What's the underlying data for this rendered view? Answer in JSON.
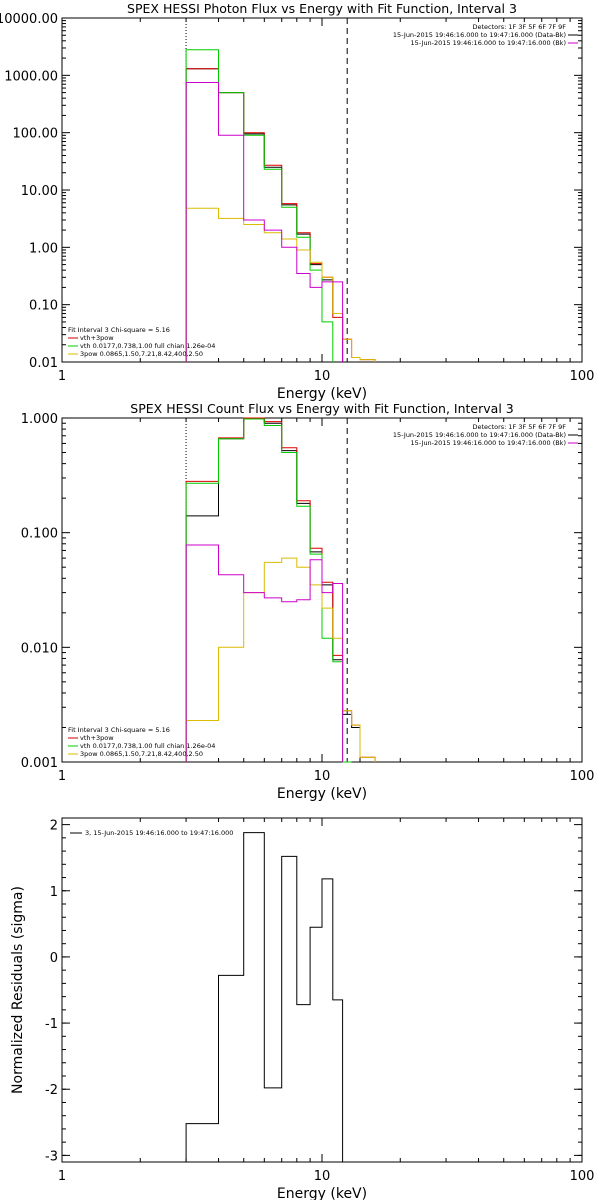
{
  "chart_data": [
    {
      "type": "line",
      "title": "SPEX HESSI Photon Flux vs Energy with Fit Function, Interval 3",
      "xlabel": "Energy (keV)",
      "ylabel": "",
      "xscale": "log",
      "yscale": "log",
      "xlim": [
        1,
        100
      ],
      "ylim": [
        0.01,
        10000
      ],
      "x_ticks": [
        "1",
        "10",
        "100"
      ],
      "y_ticks": [
        "0.01",
        "0.10",
        "1.00",
        "10.00",
        "100.00",
        "1000.00",
        "10000.00"
      ],
      "y_tick_values": [
        0.01,
        0.1,
        1,
        10,
        100,
        1000,
        10000
      ],
      "legend_top_right": [
        "Detectors: 1F 3F 5F 6F 7F 9F",
        "15-Jun-2015 19:46:16.000 to 19:47:16.000 (Data-Bk)",
        "15-Jun-2015 19:46:16.000 to 19:47:16.000 (Bk)"
      ],
      "legend_bottom_left": [
        {
          "text": "Fit Interval 3   Chi-square = 5.16",
          "color": "#000000"
        },
        {
          "text": "vth+3pow",
          "color": "#cc0000"
        },
        {
          "text": "vth 0.0177,0.738,1.00  full chian 1.26e-04",
          "color": "#00cc00"
        },
        {
          "text": "3pow 0.0865,1.50,7.21,8.42,400,2.50",
          "color": "#ddbb00"
        }
      ],
      "vlines": [
        {
          "x": 3.0,
          "style": "dotted",
          "color": "#000000"
        },
        {
          "x": 12.5,
          "style": "dashed",
          "color": "#000000"
        }
      ],
      "bin_edges": [
        3.0,
        4.0,
        5.0,
        6.0,
        7.0,
        8.0,
        9.0,
        10.0,
        11.0,
        12.0,
        13.0,
        14.0,
        16.0
      ],
      "series": [
        {
          "name": "",
          "color": "#000000",
          "values": [
            1300,
            500,
            95,
            25,
            5.5,
            1.7,
            0.5,
            0.27,
            0.07,
            null,
            null,
            null
          ]
        },
        {
          "name": "",
          "color": "#dd0000",
          "values": [
            1300,
            500,
            100,
            27,
            5.8,
            1.8,
            0.52,
            0.3,
            0.06,
            0.025,
            0.012,
            0.011
          ]
        },
        {
          "name": "",
          "color": "#00cc00",
          "values": [
            2800,
            500,
            90,
            23,
            5.0,
            1.5,
            0.4,
            0.05,
            null,
            null,
            null,
            null
          ]
        },
        {
          "name": "",
          "color": "#ddbb00",
          "values": [
            4.8,
            3.2,
            2.5,
            1.8,
            1.4,
            0.9,
            0.55,
            0.3,
            0.07,
            0.025,
            0.012,
            0.011
          ]
        },
        {
          "name": "",
          "color": "#cc00cc",
          "values": [
            750,
            90,
            3.0,
            2.0,
            1.0,
            0.35,
            0.2,
            0.25,
            0.25,
            null,
            null,
            null
          ]
        }
      ]
    },
    {
      "type": "line",
      "title": "SPEX HESSI Count Flux vs Energy with Fit Function, Interval 3",
      "xlabel": "Energy (keV)",
      "ylabel": "",
      "xscale": "log",
      "yscale": "log",
      "xlim": [
        1,
        100
      ],
      "ylim": [
        0.001,
        1.0
      ],
      "x_ticks": [
        "1",
        "10",
        "100"
      ],
      "y_ticks": [
        "0.001",
        "0.010",
        "0.100",
        "1.000"
      ],
      "y_tick_values": [
        0.001,
        0.01,
        0.1,
        1.0
      ],
      "legend_top_right": [
        "Detectors: 1F 3F 5F 6F 7F 9F",
        "15-Jun-2015 19:46:16.000 to 19:47:16.000 (Data-Bk)",
        "15-Jun-2015 19:46:16.000 to 19:47:16.000 (Bk)"
      ],
      "legend_bottom_left": [
        {
          "text": "Fit Interval 3   Chi-square = 5.16",
          "color": "#000000"
        },
        {
          "text": "vth+3pow",
          "color": "#cc0000"
        },
        {
          "text": "vth 0.0177,0.738,1.00  full chian 1.26e-04",
          "color": "#00cc00"
        },
        {
          "text": "3pow 0.0865,1.50,7.21,8.42,400,2.50",
          "color": "#ddbb00"
        }
      ],
      "vlines": [
        {
          "x": 3.0,
          "style": "dotted",
          "color": "#000000"
        },
        {
          "x": 12.5,
          "style": "dashed",
          "color": "#000000"
        }
      ],
      "bin_edges": [
        3.0,
        4.0,
        5.0,
        6.0,
        7.0,
        8.0,
        9.0,
        10.0,
        11.0,
        12.0,
        13.0,
        14.0,
        16.0
      ],
      "series": [
        {
          "name": "",
          "color": "#000000",
          "values": [
            0.14,
            0.66,
            1.0,
            0.9,
            0.52,
            0.18,
            0.068,
            0.035,
            0.0078,
            0.0026,
            0.002,
            0.001
          ]
        },
        {
          "name": "",
          "color": "#dd0000",
          "values": [
            0.28,
            0.67,
            1.02,
            0.93,
            0.55,
            0.19,
            0.073,
            0.037,
            0.0085,
            0.0028,
            0.0021,
            0.0011
          ]
        },
        {
          "name": "",
          "color": "#00cc00",
          "values": [
            0.27,
            0.66,
            0.98,
            0.86,
            0.5,
            0.17,
            0.065,
            0.012,
            0.0075,
            0.001,
            null,
            null
          ]
        },
        {
          "name": "",
          "color": "#ddbb00",
          "values": [
            0.0023,
            0.01,
            0.03,
            0.055,
            0.06,
            0.05,
            0.035,
            0.022,
            0.012,
            0.0028,
            0.0021,
            0.0011
          ]
        },
        {
          "name": "",
          "color": "#cc00cc",
          "values": [
            0.078,
            0.043,
            0.03,
            0.027,
            0.025,
            0.026,
            0.058,
            0.03,
            0.036,
            null,
            null,
            null
          ]
        }
      ]
    },
    {
      "type": "line",
      "title": "",
      "xlabel": "Energy (keV)",
      "ylabel": "Normalized Residuals (sigma)",
      "xscale": "log",
      "yscale": "linear",
      "xlim": [
        1,
        100
      ],
      "ylim": [
        -3.1,
        2.1
      ],
      "x_ticks": [
        "1",
        "10",
        "100"
      ],
      "y_ticks": [
        "2",
        "1",
        "0",
        "-1",
        "-2",
        "-3"
      ],
      "y_tick_values": [
        2,
        1,
        0,
        -1,
        -2,
        -3
      ],
      "legend": [
        {
          "text": "3, 15-Jun-2015 19:46:16.000 to 19:47:16.000",
          "color": "#000000"
        }
      ],
      "bin_edges": [
        3.0,
        4.0,
        5.0,
        6.0,
        7.0,
        8.0,
        9.0,
        10.0,
        11.0,
        12.0
      ],
      "series": [
        {
          "name": "3, 15-Jun-2015 19:46:16.000 to 19:47:16.000",
          "color": "#000000",
          "values": [
            -2.52,
            -0.28,
            1.88,
            -1.98,
            1.52,
            -0.72,
            0.45,
            1.18,
            -0.65
          ]
        }
      ]
    }
  ]
}
